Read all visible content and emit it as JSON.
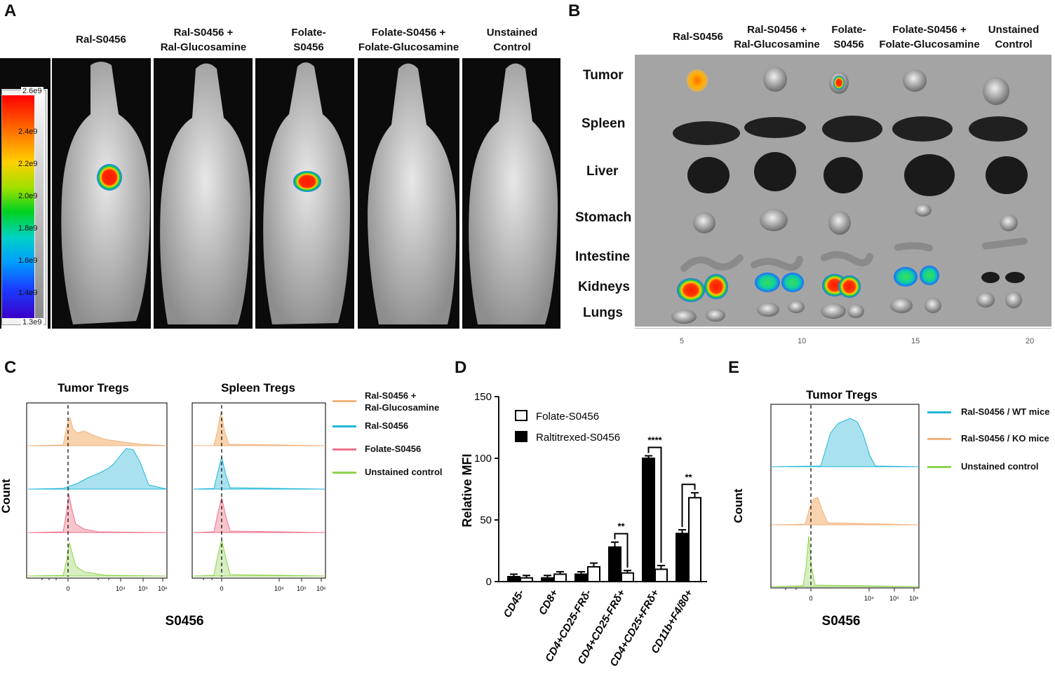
{
  "panel_labels": {
    "a": "A",
    "b": "B",
    "c": "C",
    "d": "D",
    "e": "E"
  },
  "panel_a": {
    "columns": [
      {
        "line1": "Ral-S0456",
        "line2": ""
      },
      {
        "line1": "Ral-S0456 +",
        "line2": "Ral-Glucosamine"
      },
      {
        "line1": "Folate-",
        "line2": "S0456"
      },
      {
        "line1": "Folate-S0456 +",
        "line2": "Folate-Glucosamine"
      },
      {
        "line1": "Unstained",
        "line2": "Control"
      }
    ],
    "colorbar": {
      "max": "2.6e9",
      "min": "1.3e9",
      "ticks": [
        "2.4e9",
        "2.2e9",
        "2.0e9",
        "1.8e9",
        "1.6e9",
        "1.4e9"
      ]
    },
    "signal": [
      {
        "column": 1,
        "intensity": "high"
      },
      {
        "column": 3,
        "intensity": "high"
      }
    ]
  },
  "panel_b": {
    "columns": [
      {
        "line1": "Ral-S0456",
        "line2": ""
      },
      {
        "line1": "Ral-S0456 +",
        "line2": "Ral-Glucosamine"
      },
      {
        "line1": "Folate-",
        "line2": "S0456"
      },
      {
        "line1": "Folate-S0456 +",
        "line2": "Folate-Glucosamine"
      },
      {
        "line1": "Unstained",
        "line2": "Control"
      }
    ],
    "organs": [
      "Tumor",
      "Spleen",
      "Liver",
      "Stomach",
      "Intestine",
      "Kidneys",
      "Lungs"
    ],
    "ruler": [
      "5",
      "10",
      "15",
      "20"
    ],
    "kidney_signal": [
      "high",
      "medium",
      "high",
      "medium",
      "none"
    ],
    "tumor_signal": [
      "high",
      "none",
      "high",
      "none",
      "none"
    ]
  },
  "panel_c": {
    "titles": [
      "Tumor Tregs",
      "Spleen Tregs"
    ],
    "ylabel": "Count",
    "xlabel": "S0456",
    "ticks": [
      "0",
      "10⁴",
      "10⁵",
      "10⁶"
    ],
    "legend": [
      {
        "line1": "Ral-S0456 +",
        "line2": "Ral-Glucosamine",
        "color": "#f2b27e"
      },
      {
        "line1": "Ral-S0456",
        "line2": "",
        "color": "#22b7d8"
      },
      {
        "line1": "Folate-S0456",
        "line2": "",
        "color": "#f06f8c"
      },
      {
        "line1": "Unstained control",
        "line2": "",
        "color": "#8fd44b"
      }
    ]
  },
  "chart_data": {
    "type": "bar",
    "title": "",
    "xlabel": "",
    "ylabel": "Relative MFI",
    "ylim": [
      0,
      150
    ],
    "yticks": [
      "0",
      "50",
      "100",
      "150"
    ],
    "categories": [
      "CD45-",
      "CD8+",
      "CD4+CD25-FRδ-",
      "CD4+CD25-FRδ+",
      "CD4+CD25+FRδ+",
      "CD11b+F4/80+"
    ],
    "series": [
      {
        "name": "Raltitrexed-S0456",
        "fill": "#000000",
        "values": [
          4,
          3,
          6,
          28,
          100,
          39
        ],
        "errors": [
          2,
          2,
          2,
          4,
          2,
          3
        ]
      },
      {
        "name": "Folate-S0456",
        "fill": "#ffffff",
        "values": [
          3,
          6,
          12,
          7,
          10,
          68
        ],
        "errors": [
          2,
          2,
          3,
          2,
          3,
          4
        ]
      }
    ],
    "legend_order": [
      "Folate-S0456",
      "Raltitrexed-S0456"
    ],
    "significance": [
      {
        "category": "CD4+CD25-FRδ+",
        "label": "**"
      },
      {
        "category": "CD4+CD25+FRδ+",
        "label": "****"
      },
      {
        "category": "CD11b+F4/80+",
        "label": "**"
      }
    ]
  },
  "panel_e": {
    "title": "Tumor Tregs",
    "ylabel": "Count",
    "xlabel": "S0456",
    "ticks": [
      "0",
      "10⁴",
      "10⁵",
      "10⁶"
    ],
    "legend": [
      {
        "label": "Ral-S0456 / WT mice",
        "color": "#22b7d8"
      },
      {
        "label": "Ral-S0456 / KO mice",
        "color": "#f2b27e"
      },
      {
        "label": "Unstained control",
        "color": "#8fd44b"
      }
    ]
  }
}
